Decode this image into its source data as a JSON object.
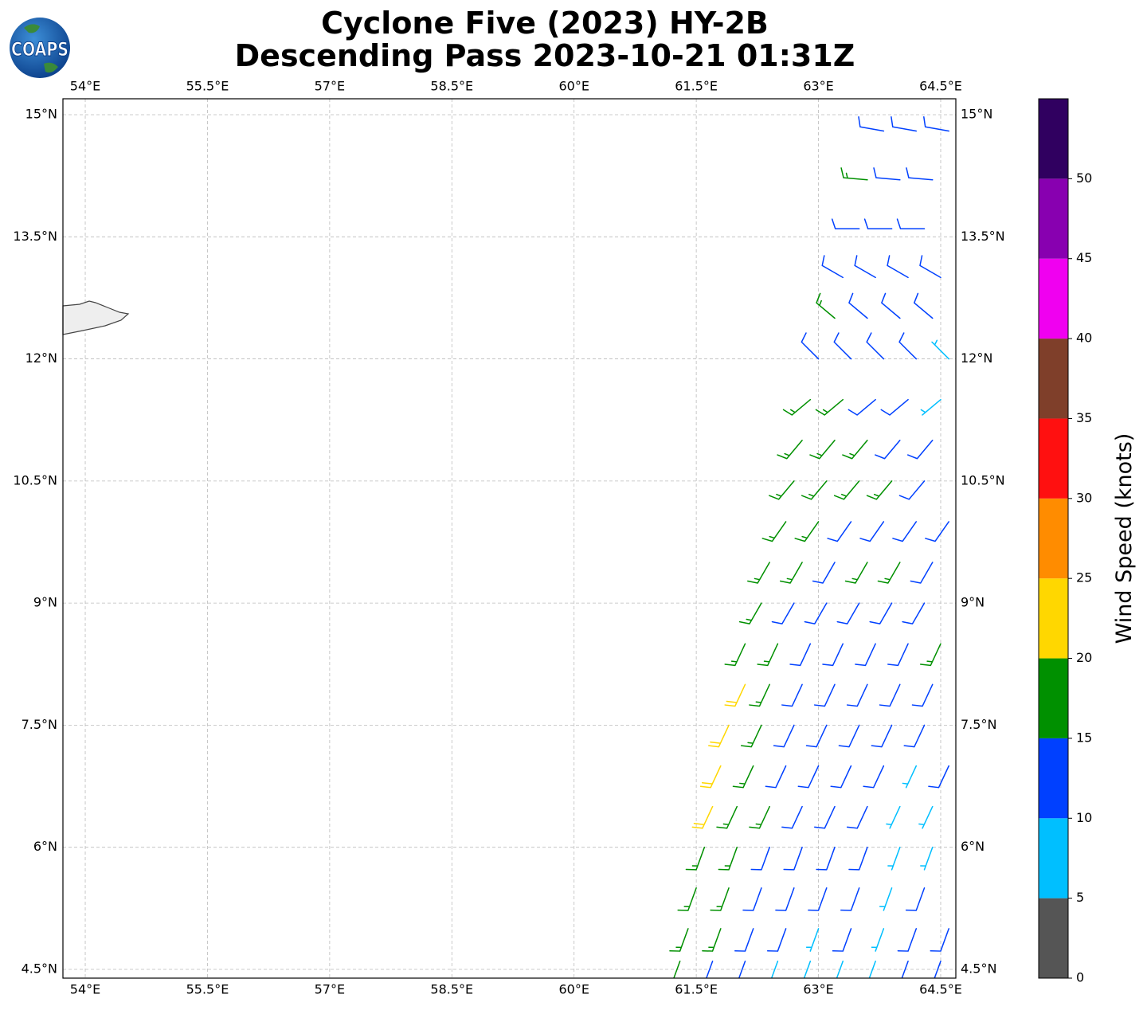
{
  "chart_data": {
    "type": "barbs",
    "title": "Cyclone Five (2023) HY-2B",
    "subtitle": "Descending Pass 2023-10-21 01:31Z",
    "logo": "COAPS",
    "xlim": [
      53.726,
      64.686
    ],
    "ylim": [
      4.392,
      15.196
    ],
    "xticks": [
      {
        "value": 54,
        "label": "54°E"
      },
      {
        "value": 55.5,
        "label": "55.5°E"
      },
      {
        "value": 57,
        "label": "57°E"
      },
      {
        "value": 58.5,
        "label": "58.5°E"
      },
      {
        "value": 60,
        "label": "60°E"
      },
      {
        "value": 61.5,
        "label": "61.5°E"
      },
      {
        "value": 63,
        "label": "63°E"
      },
      {
        "value": 64.5,
        "label": "64.5°E"
      }
    ],
    "yticks": [
      {
        "value": 4.5,
        "label": "4.5°N"
      },
      {
        "value": 6,
        "label": "6°N"
      },
      {
        "value": 7.5,
        "label": "7.5°N"
      },
      {
        "value": 9,
        "label": "9°N"
      },
      {
        "value": 10.5,
        "label": "10.5°N"
      },
      {
        "value": 12,
        "label": "12°N"
      },
      {
        "value": 13.5,
        "label": "13.5°N"
      },
      {
        "value": 15,
        "label": "15°N"
      }
    ],
    "grid": true,
    "colorbar": {
      "label": "Wind Speed (knots)",
      "lim": [
        0,
        55
      ],
      "ticks": [
        0,
        5,
        10,
        15,
        20,
        25,
        30,
        35,
        40,
        45,
        50
      ],
      "bounds": [
        0,
        5,
        10,
        15,
        20,
        25,
        30,
        35,
        40,
        45,
        50,
        55
      ],
      "colors": [
        "#555555",
        "#00bfff",
        "#0040ff",
        "#009000",
        "#ffd700",
        "#ff8c00",
        "#ff1010",
        "#7f3f2a",
        "#f000f0",
        "#8800b0",
        "#300060"
      ]
    },
    "barbs": [
      {
        "lat": 14.8,
        "direction": 280,
        "lon": [
          63.8,
          64.2,
          64.6
        ],
        "speed": [
          12,
          12,
          12
        ]
      },
      {
        "lat": 14.2,
        "direction": 275,
        "lon": [
          63.6,
          64.0,
          64.4
        ],
        "speed": [
          17,
          12,
          12
        ]
      },
      {
        "lat": 13.6,
        "direction": 270,
        "lon": [
          63.5,
          63.9,
          64.3
        ],
        "speed": [
          13,
          13,
          13
        ]
      },
      {
        "lat": 13.0,
        "direction": 300,
        "lon": [
          63.3,
          63.7,
          64.1,
          64.5
        ],
        "speed": [
          12,
          13,
          12,
          12
        ]
      },
      {
        "lat": 12.5,
        "direction": 310,
        "lon": [
          63.2,
          63.6,
          64.0,
          64.4
        ],
        "speed": [
          17,
          12,
          12,
          12
        ]
      },
      {
        "lat": 12.0,
        "direction": 315,
        "lon": [
          63.0,
          63.4,
          63.8,
          64.2,
          64.6
        ],
        "speed": [
          12,
          13,
          12,
          12,
          8
        ]
      },
      {
        "lat": 11.5,
        "direction": 230,
        "lon": [
          62.9,
          63.3,
          63.7,
          64.1,
          64.5
        ],
        "speed": [
          17,
          16,
          12,
          12,
          8
        ]
      },
      {
        "lat": 11.0,
        "direction": 220,
        "lon": [
          62.8,
          63.2,
          63.6,
          64.0,
          64.4
        ],
        "speed": [
          17,
          17,
          16,
          12,
          12
        ]
      },
      {
        "lat": 10.5,
        "direction": 220,
        "lon": [
          62.7,
          63.1,
          63.5,
          63.9,
          64.3
        ],
        "speed": [
          17,
          17,
          16,
          17,
          12
        ]
      },
      {
        "lat": 10.0,
        "direction": 215,
        "lon": [
          62.6,
          63.0,
          63.4,
          63.8,
          64.2,
          64.6
        ],
        "speed": [
          16,
          17,
          12,
          12,
          12,
          12
        ]
      },
      {
        "lat": 9.5,
        "direction": 210,
        "lon": [
          62.4,
          62.8,
          63.2,
          63.6,
          64.0,
          64.4
        ],
        "speed": [
          17,
          16,
          12,
          17,
          17,
          12
        ]
      },
      {
        "lat": 9.0,
        "direction": 210,
        "lon": [
          62.3,
          62.7,
          63.1,
          63.5,
          63.9,
          64.3
        ],
        "speed": [
          17,
          13,
          12,
          12,
          12,
          12
        ]
      },
      {
        "lat": 8.5,
        "direction": 205,
        "lon": [
          62.1,
          62.5,
          62.9,
          63.3,
          63.7,
          64.1,
          64.5
        ],
        "speed": [
          18,
          17,
          12,
          12,
          12,
          12,
          17
        ]
      },
      {
        "lat": 8.0,
        "direction": 205,
        "lon": [
          62.1,
          62.4,
          62.8,
          63.2,
          63.6,
          64.0,
          64.4
        ],
        "speed": [
          21,
          17,
          12,
          12,
          12,
          12,
          12
        ]
      },
      {
        "lat": 7.5,
        "direction": 205,
        "lon": [
          61.9,
          62.3,
          62.7,
          63.1,
          63.5,
          63.9,
          64.3
        ],
        "speed": [
          22,
          17,
          12,
          12,
          12,
          12,
          12
        ]
      },
      {
        "lat": 7.0,
        "direction": 205,
        "lon": [
          61.8,
          62.2,
          62.6,
          63.0,
          63.4,
          63.8,
          64.2,
          64.6
        ],
        "speed": [
          21,
          17,
          13,
          12,
          12,
          12,
          8,
          12
        ]
      },
      {
        "lat": 6.5,
        "direction": 205,
        "lon": [
          61.7,
          62.0,
          62.4,
          62.8,
          63.2,
          63.6,
          64.0,
          64.4
        ],
        "speed": [
          22,
          17,
          16,
          12,
          12,
          12,
          8,
          8
        ]
      },
      {
        "lat": 6.0,
        "direction": 200,
        "lon": [
          61.6,
          62.0,
          62.4,
          62.8,
          63.2,
          63.6,
          64.0,
          64.4
        ],
        "speed": [
          17,
          16,
          12,
          12,
          12,
          12,
          8,
          8
        ]
      },
      {
        "lat": 5.5,
        "direction": 200,
        "lon": [
          61.5,
          61.9,
          62.3,
          62.7,
          63.1,
          63.5,
          63.9,
          64.3
        ],
        "speed": [
          16,
          17,
          12,
          12,
          12,
          12,
          8,
          12
        ]
      },
      {
        "lat": 5.0,
        "direction": 200,
        "lon": [
          61.4,
          61.8,
          62.2,
          62.6,
          63.0,
          63.4,
          63.8,
          64.2,
          64.6
        ],
        "speed": [
          17,
          16,
          12,
          12,
          8,
          12,
          8,
          12,
          12
        ]
      },
      {
        "lat": 4.6,
        "direction": 200,
        "lon": [
          61.3,
          61.7,
          62.1,
          62.5,
          62.9,
          63.3,
          63.7,
          64.1,
          64.5
        ],
        "speed": [
          16,
          12,
          12,
          8,
          8,
          8,
          8,
          12,
          12
        ]
      }
    ]
  }
}
